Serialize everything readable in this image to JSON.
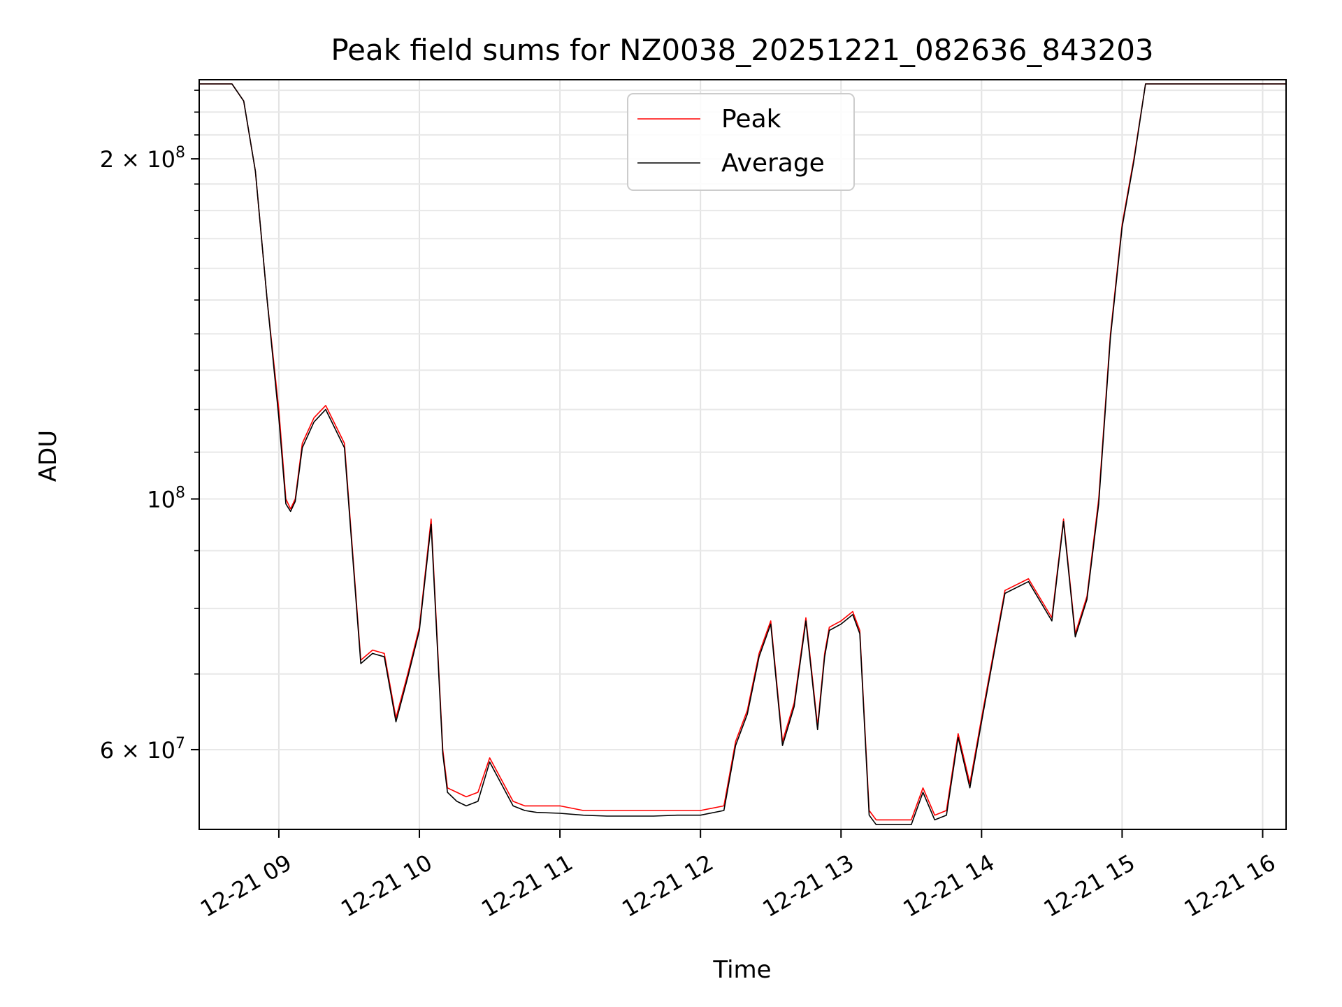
{
  "chart_data": {
    "type": "line",
    "title": "Peak field sums for NZ0038_20251221_082636_843203",
    "xlabel": "Time",
    "ylabel": "ADU",
    "y_scale": "log",
    "ylim": [
      51000000,
      235000000
    ],
    "xlim": [
      "2025-12-21 08:26",
      "2025-12-21 16:10"
    ],
    "x_ticks": [
      "12-21 09",
      "12-21 10",
      "12-21 11",
      "12-21 12",
      "12-21 13",
      "12-21 14",
      "12-21 15",
      "12-21 16"
    ],
    "y_ticks": [
      {
        "value": 60000000,
        "mantissa": "6",
        "exponent": "7"
      },
      {
        "value": 100000000,
        "mantissa": "",
        "exponent": "8"
      },
      {
        "value": 200000000,
        "mantissa": "2",
        "exponent": "8"
      }
    ],
    "grid": true,
    "legend": "top-center",
    "series": [
      {
        "name": "Peak",
        "color": "#ff0000",
        "x": [
          "08:26",
          "08:40",
          "08:45",
          "08:50",
          "08:55",
          "09:00",
          "09:03",
          "09:05",
          "09:07",
          "09:10",
          "09:15",
          "09:20",
          "09:28",
          "09:35",
          "09:40",
          "09:45",
          "09:50",
          "09:55",
          "10:00",
          "10:05",
          "10:10",
          "10:12",
          "10:16",
          "10:20",
          "10:25",
          "10:30",
          "10:40",
          "10:45",
          "10:50",
          "11:00",
          "11:10",
          "11:20",
          "11:30",
          "11:40",
          "11:50",
          "12:00",
          "12:10",
          "12:15",
          "12:20",
          "12:25",
          "12:30",
          "12:35",
          "12:40",
          "12:45",
          "12:50",
          "12:53",
          "12:55",
          "13:00",
          "13:05",
          "13:08",
          "13:12",
          "13:15",
          "13:20",
          "13:25",
          "13:30",
          "13:35",
          "13:40",
          "13:45",
          "13:50",
          "13:55",
          "14:00",
          "14:10",
          "14:20",
          "14:30",
          "14:35",
          "14:40",
          "14:45",
          "14:50",
          "14:55",
          "15:00",
          "15:05",
          "15:10",
          "15:12",
          "15:15",
          "15:18",
          "15:20",
          "15:22",
          "15:25",
          "15:30",
          "15:35",
          "15:40",
          "15:45",
          "15:50",
          "15:55",
          "16:00",
          "16:10"
        ],
        "values": [
          233000000,
          233000000,
          225000000,
          195000000,
          150000000,
          120000000,
          100000000,
          98000000,
          100000000,
          112000000,
          118000000,
          121000000,
          112000000,
          72000000,
          73500000,
          73000000,
          64000000,
          70000000,
          77000000,
          96000000,
          60000000,
          55500000,
          55000000,
          54500000,
          55000000,
          59000000,
          54000000,
          53500000,
          53500000,
          53500000,
          53000000,
          53000000,
          53000000,
          53000000,
          53000000,
          53000000,
          53500000,
          61000000,
          65000000,
          73000000,
          78000000,
          61000000,
          66000000,
          78500000,
          63000000,
          73000000,
          77000000,
          78000000,
          79500000,
          76500000,
          53000000,
          52000000,
          52000000,
          52000000,
          52000000,
          55500000,
          52500000,
          53000000,
          62000000,
          56000000,
          64000000,
          83000000,
          85000000,
          78500000,
          96000000,
          76000000,
          82000000,
          100000000,
          140000000,
          175000000,
          200000000,
          233000000,
          233000000,
          233000000,
          233000000,
          233000000,
          233000000,
          233000000,
          233000000,
          233000000,
          233000000,
          233000000,
          233000000,
          233000000,
          233000000,
          233000000
        ]
      },
      {
        "name": "Average",
        "color": "#000000",
        "x": [
          "08:26",
          "08:40",
          "08:45",
          "08:50",
          "08:55",
          "09:00",
          "09:03",
          "09:05",
          "09:07",
          "09:10",
          "09:15",
          "09:20",
          "09:28",
          "09:35",
          "09:40",
          "09:45",
          "09:50",
          "09:55",
          "10:00",
          "10:05",
          "10:10",
          "10:12",
          "10:16",
          "10:20",
          "10:25",
          "10:30",
          "10:40",
          "10:45",
          "10:50",
          "11:00",
          "11:10",
          "11:20",
          "11:30",
          "11:40",
          "11:50",
          "12:00",
          "12:10",
          "12:15",
          "12:20",
          "12:25",
          "12:30",
          "12:35",
          "12:40",
          "12:45",
          "12:50",
          "12:53",
          "12:55",
          "13:00",
          "13:05",
          "13:08",
          "13:12",
          "13:15",
          "13:20",
          "13:25",
          "13:30",
          "13:35",
          "13:40",
          "13:45",
          "13:50",
          "13:55",
          "14:00",
          "14:10",
          "14:20",
          "14:30",
          "14:35",
          "14:40",
          "14:45",
          "14:50",
          "14:55",
          "15:00",
          "15:05",
          "15:10",
          "15:12",
          "15:15",
          "15:18",
          "15:20",
          "15:22",
          "15:25",
          "15:30",
          "15:35",
          "15:40",
          "15:45",
          "15:50",
          "15:55",
          "16:00",
          "16:10"
        ],
        "values": [
          233000000,
          233000000,
          225000000,
          195000000,
          150000000,
          118000000,
          99000000,
          97500000,
          99500000,
          111000000,
          117000000,
          120000000,
          111000000,
          71500000,
          73000000,
          72500000,
          63500000,
          69500000,
          76500000,
          95000000,
          59500000,
          55000000,
          54000000,
          53500000,
          54000000,
          58500000,
          53500000,
          53000000,
          52800000,
          52700000,
          52500000,
          52400000,
          52400000,
          52400000,
          52500000,
          52500000,
          53000000,
          60500000,
          64500000,
          72500000,
          77500000,
          60500000,
          65500000,
          78000000,
          62500000,
          72500000,
          76500000,
          77500000,
          79000000,
          76000000,
          52500000,
          51500000,
          51500000,
          51500000,
          51500000,
          55000000,
          52000000,
          52500000,
          61500000,
          55500000,
          63500000,
          82500000,
          84500000,
          78000000,
          95500000,
          75500000,
          81500000,
          99000000,
          139000000,
          174000000,
          199000000,
          233000000,
          233000000,
          233000000,
          233000000,
          233000000,
          233000000,
          233000000,
          233000000,
          233000000,
          233000000,
          233000000,
          233000000,
          233000000,
          233000000,
          233000000
        ]
      }
    ]
  }
}
